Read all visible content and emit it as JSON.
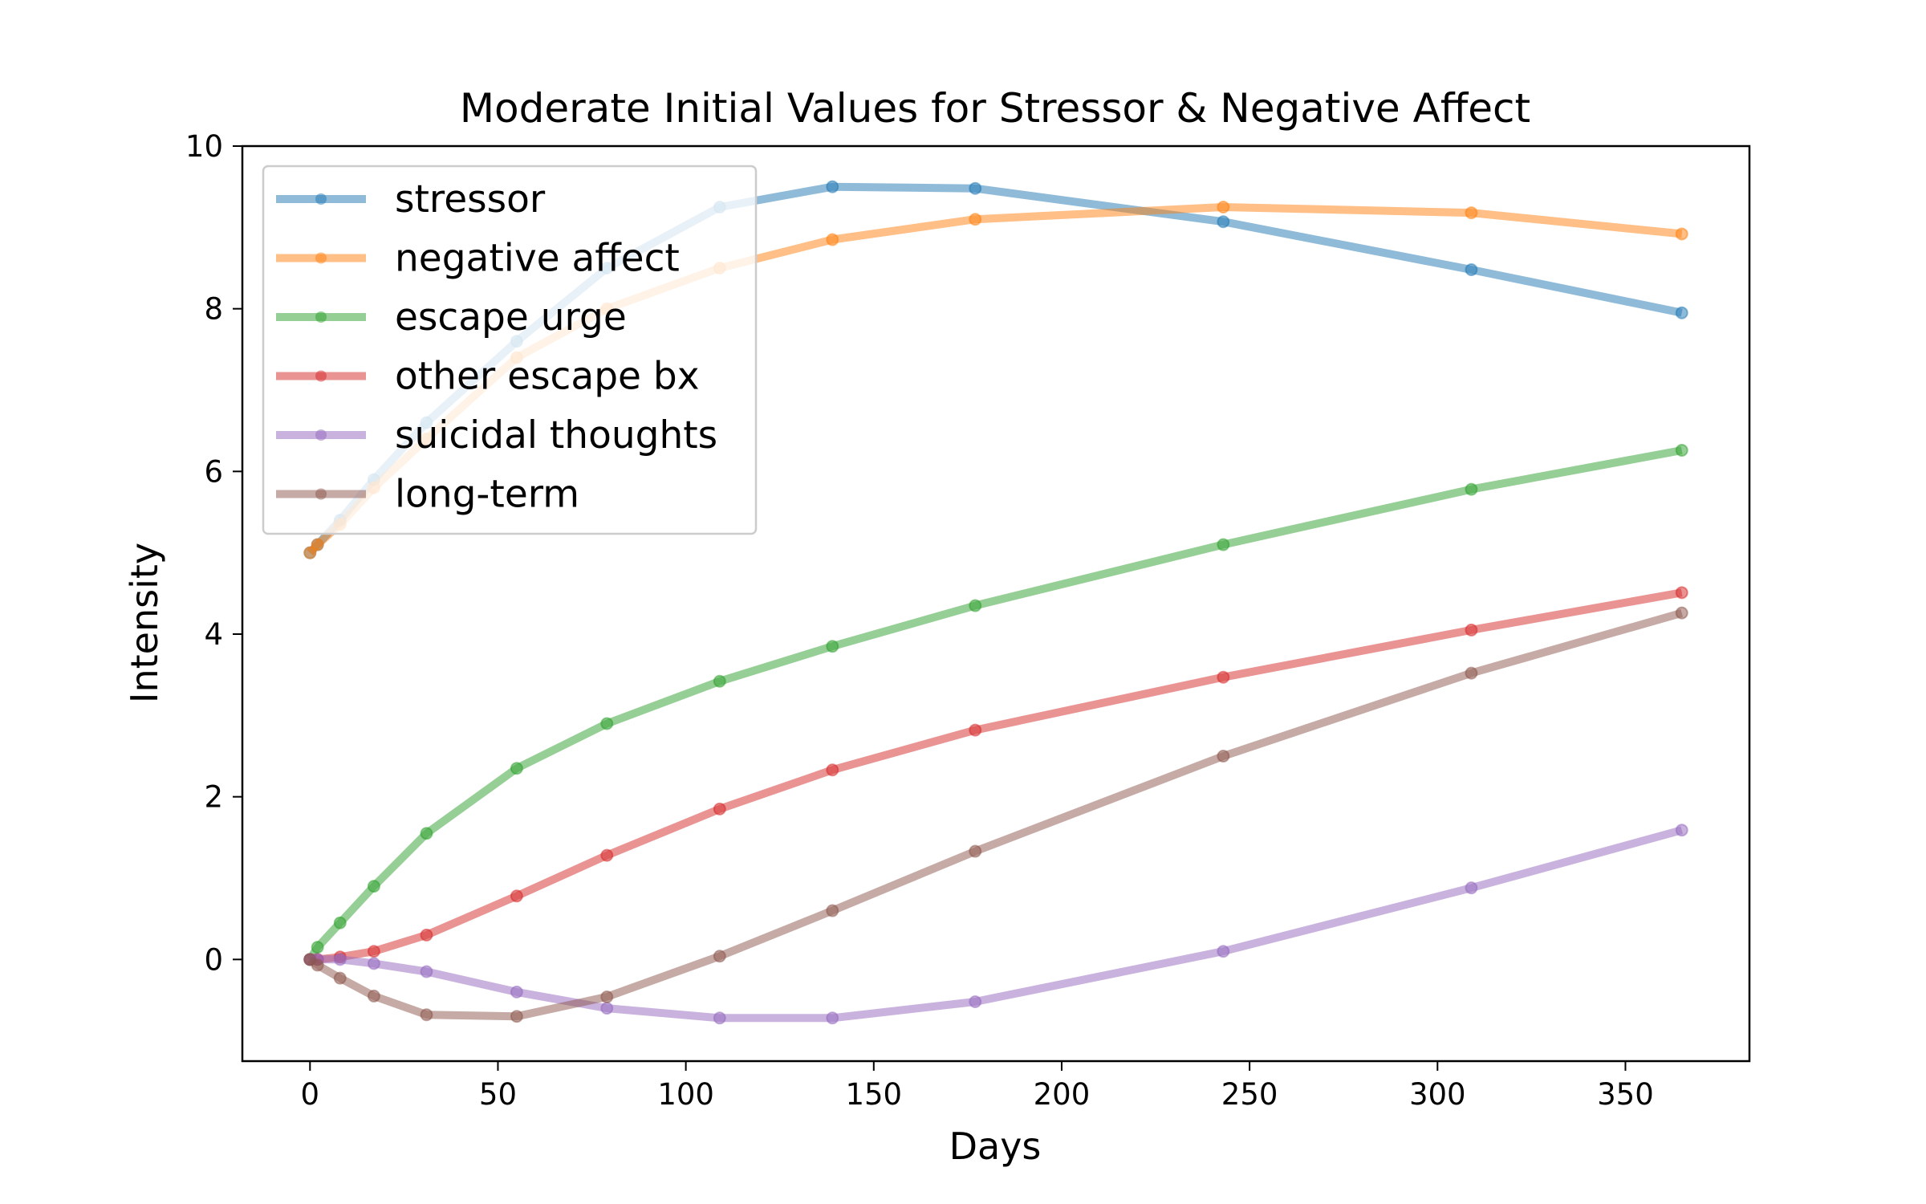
{
  "chart_data": {
    "type": "line",
    "title": "Moderate Initial Values for Stressor & Negative Affect",
    "xlabel": "Days",
    "ylabel": "Intensity",
    "xlim": [
      -18,
      383
    ],
    "ylim": [
      -1.25,
      10
    ],
    "xticks": [
      "0",
      "50",
      "100",
      "150",
      "200",
      "250",
      "300",
      "350"
    ],
    "yticks": [
      "0",
      "2",
      "4",
      "6",
      "8",
      "10"
    ],
    "grid": false,
    "legend_position": "upper-left",
    "x": [
      0,
      2,
      8,
      17,
      31,
      55,
      79,
      109,
      139,
      177,
      243,
      309,
      365
    ],
    "series": [
      {
        "name": "stressor",
        "color": "#1f77b4",
        "values": [
          5.0,
          5.1,
          5.4,
          5.9,
          6.6,
          7.6,
          8.5,
          9.25,
          9.5,
          9.48,
          9.07,
          8.48,
          7.95
        ]
      },
      {
        "name": "negative affect",
        "color": "#ff7f0e",
        "values": [
          5.0,
          5.1,
          5.35,
          5.8,
          6.4,
          7.4,
          8.0,
          8.5,
          8.85,
          9.1,
          9.25,
          9.18,
          8.92
        ]
      },
      {
        "name": "escape urge",
        "color": "#2ca02c",
        "values": [
          0.0,
          0.15,
          0.45,
          0.9,
          1.55,
          2.35,
          2.9,
          3.42,
          3.85,
          4.35,
          5.1,
          5.78,
          6.26
        ]
      },
      {
        "name": "other escape bx",
        "color": "#d62728",
        "values": [
          0.0,
          0.0,
          0.03,
          0.1,
          0.3,
          0.78,
          1.28,
          1.85,
          2.33,
          2.82,
          3.47,
          4.05,
          4.51
        ]
      },
      {
        "name": "suicidal thoughts",
        "color": "#9467bd",
        "values": [
          0.0,
          0.0,
          0.0,
          -0.05,
          -0.15,
          -0.4,
          -0.6,
          -0.72,
          -0.72,
          -0.52,
          0.1,
          0.88,
          1.59
        ]
      },
      {
        "name": "long-term",
        "color": "#8c564b",
        "values": [
          0.0,
          -0.07,
          -0.23,
          -0.45,
          -0.68,
          -0.7,
          -0.46,
          0.04,
          0.6,
          1.33,
          2.5,
          3.52,
          4.26
        ]
      }
    ]
  }
}
